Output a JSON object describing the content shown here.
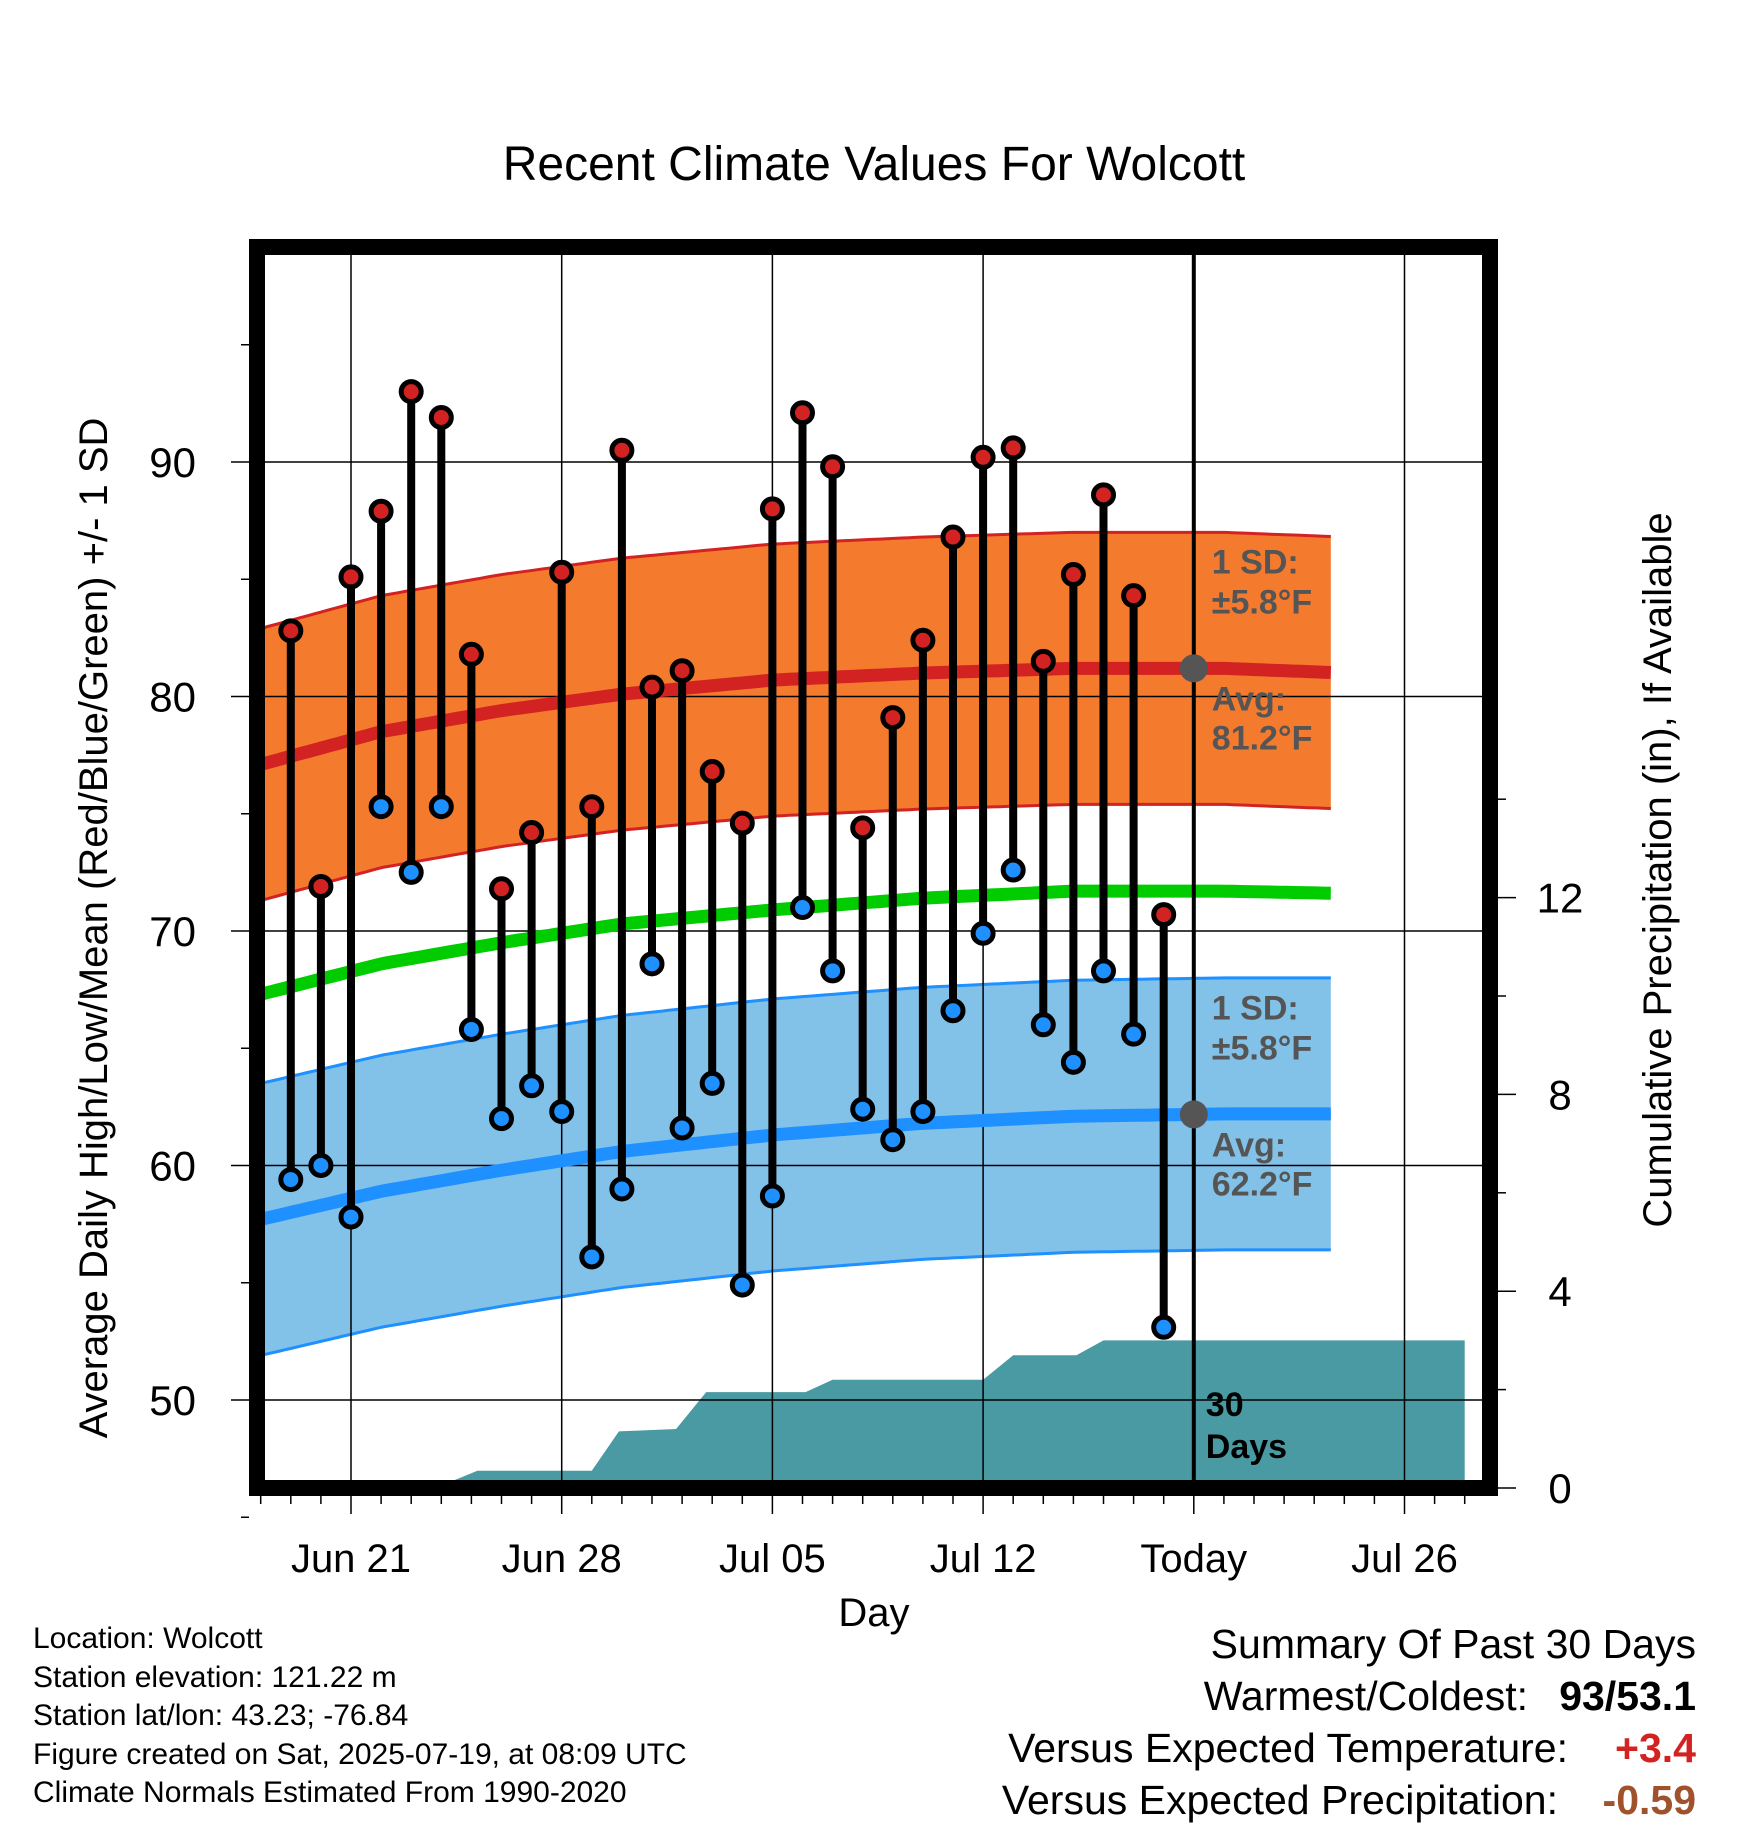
{
  "chart_data": {
    "type": "line",
    "title": "Recent Climate Values For Wolcott",
    "xlabel": "Day",
    "ylabel": "Average Daily High/Low/Mean (Red/Blue/Green) +/- 1 SD",
    "y2label": "Cumulative Precipitation (in), If Available",
    "ylim": [
      44.5,
      98.7
    ],
    "y2lim": [
      0,
      28.9
    ],
    "xlim": [
      -3.7,
      37.4
    ],
    "yticks": [
      "50",
      "60",
      "70",
      "80",
      "90"
    ],
    "y2ticks": [
      "0",
      "4",
      "8",
      "12"
    ],
    "xticks": [
      {
        "label": "Jun 21",
        "day": 0
      },
      {
        "label": "Jun 28",
        "day": 7
      },
      {
        "label": "Jul 05",
        "day": 14
      },
      {
        "label": "Jul 12",
        "day": 21
      },
      {
        "label": "Today",
        "day": 28
      },
      {
        "label": "Jul 26",
        "day": 35
      }
    ],
    "today_day": 28,
    "days": [
      -2,
      -1,
      0,
      1,
      2,
      3,
      4,
      5,
      6,
      7,
      8,
      9,
      10,
      11,
      12,
      13,
      14,
      15,
      16,
      17,
      18,
      19,
      20,
      21,
      22,
      23,
      24,
      25,
      26,
      27
    ],
    "highs": [
      82.8,
      71.9,
      85.1,
      87.9,
      93.0,
      91.9,
      81.8,
      71.8,
      74.2,
      85.3,
      75.3,
      90.5,
      80.4,
      81.1,
      76.8,
      74.6,
      88.0,
      92.1,
      89.8,
      74.4,
      79.1,
      82.4,
      86.8,
      90.2,
      90.6,
      81.5,
      85.2,
      88.6,
      84.3,
      70.7
    ],
    "lows": [
      59.4,
      60.0,
      57.8,
      75.3,
      72.5,
      75.3,
      65.8,
      62.0,
      63.4,
      62.3,
      56.1,
      59.0,
      68.6,
      61.6,
      63.5,
      54.9,
      58.7,
      71.0,
      68.3,
      62.4,
      61.1,
      62.3,
      66.6,
      69.9,
      72.6,
      66.0,
      64.4,
      68.3,
      65.6,
      53.1
    ],
    "normal_curve_days": [
      -3,
      1,
      5,
      9,
      14,
      19,
      24,
      29,
      33,
      37
    ],
    "normal_high": [
      77.1,
      78.5,
      79.4,
      80.1,
      80.7,
      81.0,
      81.2,
      81.2,
      81.0,
      80.8
    ],
    "normal_mean": [
      67.3,
      68.6,
      69.5,
      70.3,
      70.9,
      71.4,
      71.7,
      71.7,
      71.6,
      71.4
    ],
    "normal_low": [
      57.7,
      58.9,
      59.8,
      60.6,
      61.3,
      61.8,
      62.1,
      62.2,
      62.2,
      62.1
    ],
    "high_sd": 5.8,
    "low_sd": 5.8,
    "precip_steps": [
      {
        "day": -3,
        "value": 0
      },
      {
        "day": 2.8,
        "value": 0
      },
      {
        "day": 4.2,
        "value": 0.35
      },
      {
        "day": 8.0,
        "value": 0.35
      },
      {
        "day": 8.9,
        "value": 1.15
      },
      {
        "day": 10.8,
        "value": 1.2
      },
      {
        "day": 11.8,
        "value": 1.95
      },
      {
        "day": 15.1,
        "value": 1.95
      },
      {
        "day": 16.0,
        "value": 2.2
      },
      {
        "day": 21.0,
        "value": 2.2
      },
      {
        "day": 22.0,
        "value": 2.7
      },
      {
        "day": 24.1,
        "value": 2.7
      },
      {
        "day": 25.0,
        "value": 3.0
      },
      {
        "day": 37,
        "value": 3.0
      }
    ],
    "annotations": {
      "high_sd_label": [
        "1 SD:",
        "±5.8°F"
      ],
      "high_avg_label": [
        "Avg:",
        "81.2°F"
      ],
      "low_sd_label": [
        "1 SD:",
        "±5.8°F"
      ],
      "low_avg_label": [
        "Avg:",
        "62.2°F"
      ],
      "window_label": [
        "30",
        "Days"
      ]
    },
    "colors": {
      "high_band": "#f47a2e",
      "high_line": "#d32222",
      "mean_line": "#00cc00",
      "low_band": "#82c1e8",
      "low_line": "#1e90ff",
      "precip": "#4a9aa3",
      "high_dot": "#d32222",
      "low_dot": "#1e90ff",
      "annotation_text": "#555555",
      "avg_dot": "#555555"
    }
  },
  "footer": {
    "location": "Location: Wolcott",
    "elevation": "Station elevation: 121.22 m",
    "latlon": "Station lat/lon: 43.23; -76.84",
    "created": "Figure created on Sat, 2025-07-19, at 08:09 UTC",
    "normals": "Climate Normals Estimated From 1990-2020"
  },
  "summary": {
    "title": "Summary Of Past 30 Days",
    "warmest_label": "Warmest/Coldest:",
    "warmest_value": "93/53.1",
    "temp_label": "Versus Expected Temperature:",
    "temp_value": "+3.4",
    "temp_color": "#d32222",
    "precip_label": "Versus Expected Precipitation:",
    "precip_value": "-0.59",
    "precip_color": "#a0522d"
  }
}
